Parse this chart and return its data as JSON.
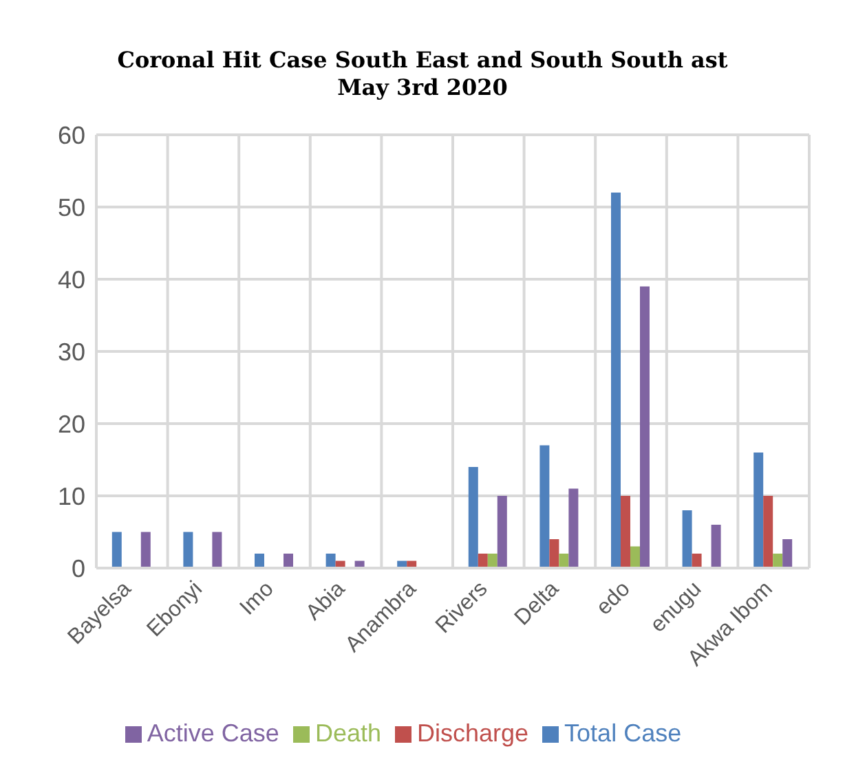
{
  "chart_data": {
    "type": "bar",
    "title": "Coronal Hit Case South East and South South ast\nMay 3rd 2020",
    "categories": [
      "Bayelsa",
      "Ebonyi",
      "Imo",
      "Abia",
      "Anambra",
      "Rivers",
      "Delta",
      "edo",
      "enugu",
      "Akwa Ibom"
    ],
    "series": [
      {
        "name": "Total Case",
        "color": "#4f81bd",
        "values": [
          5,
          5,
          2,
          2,
          1,
          14,
          17,
          52,
          8,
          16
        ]
      },
      {
        "name": "Discharge",
        "color": "#c0504d",
        "values": [
          0,
          0,
          0,
          1,
          1,
          2,
          4,
          10,
          2,
          10
        ]
      },
      {
        "name": "Death",
        "color": "#9bbb59",
        "values": [
          0,
          0,
          0,
          0,
          0,
          2,
          2,
          3,
          0,
          2
        ]
      },
      {
        "name": "Active Case",
        "color": "#8064a2",
        "values": [
          5,
          5,
          2,
          1,
          0,
          10,
          11,
          39,
          6,
          4
        ]
      }
    ],
    "ylim": [
      0,
      60
    ],
    "yticks": [
      0,
      10,
      20,
      30,
      40,
      50,
      60
    ],
    "grid": true,
    "legend": "bottom"
  }
}
